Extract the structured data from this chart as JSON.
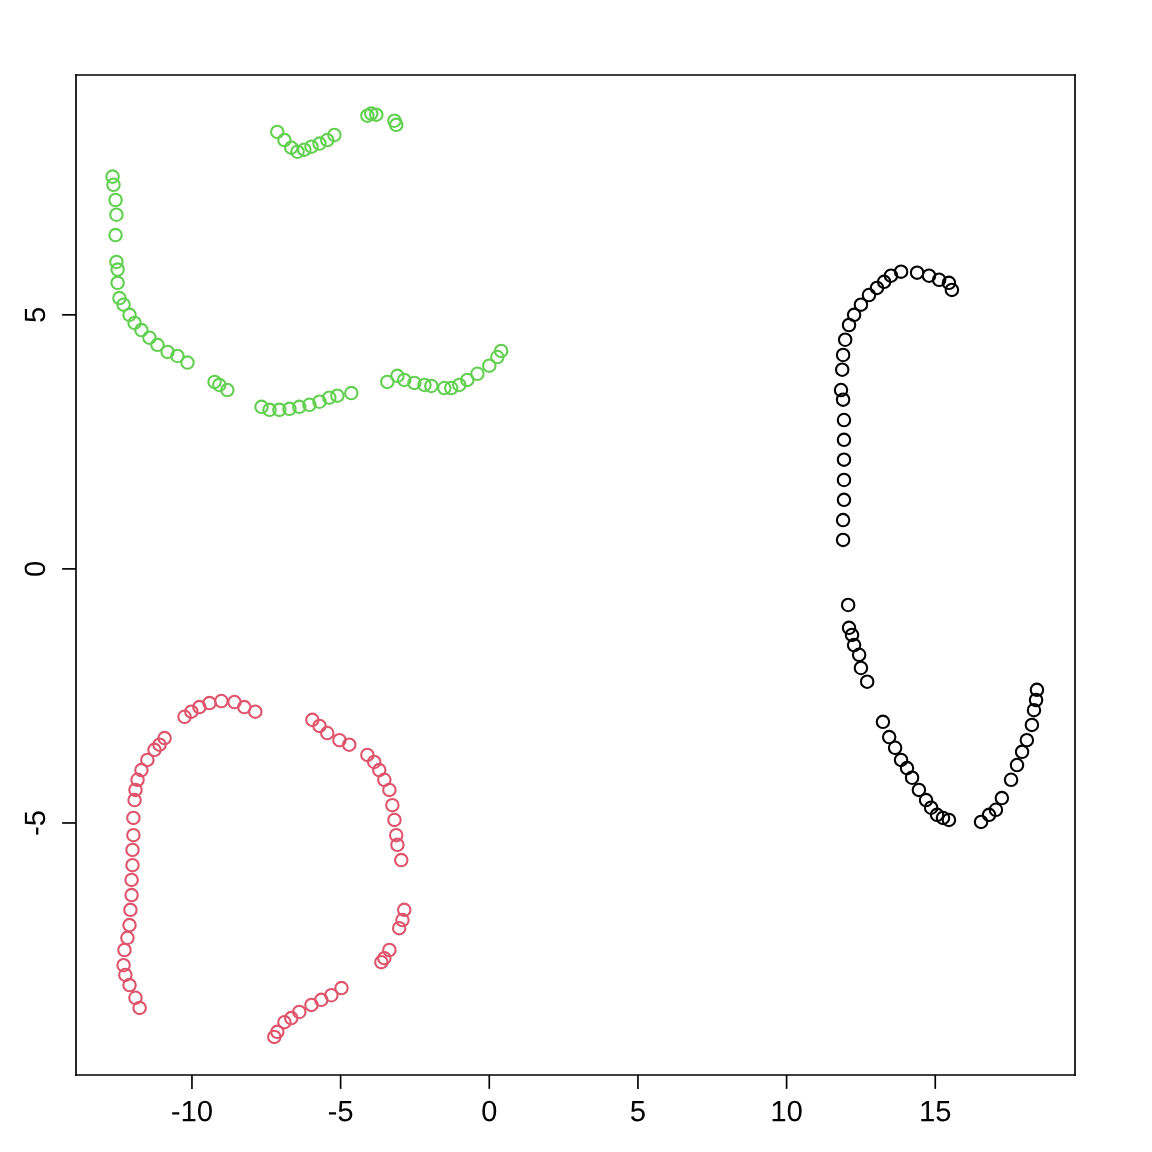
{
  "chart_data": {
    "type": "scatter",
    "marker": "circle",
    "grid": false,
    "xlim": [
      -13.9,
      19.7
    ],
    "ylim": [
      -9.96,
      9.72
    ],
    "xticks": [
      {
        "value": -10,
        "label": "-10"
      },
      {
        "value": -5,
        "label": "-5"
      },
      0,
      5,
      10,
      15
    ],
    "yticks": [
      {
        "value": -5,
        "label": "-5"
      },
      0,
      5
    ],
    "series": [
      {
        "color": "#000000",
        "x": [
          11.9,
          11.9,
          11.93,
          11.93,
          11.93,
          11.93,
          11.93,
          11.9,
          11.83,
          11.87,
          11.9,
          11.97,
          12.1,
          12.27,
          12.5,
          12.77,
          13.04,
          13.28,
          13.51,
          13.85,
          14.39,
          14.79,
          15.13,
          15.46,
          15.56,
          12.07,
          12.1,
          12.2,
          12.27,
          12.44,
          12.5,
          12.71,
          13.24,
          13.45,
          13.65,
          13.85,
          14.05,
          14.22,
          14.45,
          14.69,
          14.86,
          15.06,
          15.26,
          15.46,
          16.54,
          16.81,
          17.04,
          17.24,
          17.55,
          17.75,
          17.92,
          18.08,
          18.25,
          18.32,
          18.39,
          18.42
        ],
        "values": [
          0.57,
          0.96,
          1.36,
          1.75,
          2.15,
          2.54,
          2.93,
          3.33,
          3.52,
          3.92,
          4.21,
          4.51,
          4.8,
          5.0,
          5.2,
          5.39,
          5.53,
          5.65,
          5.77,
          5.85,
          5.83,
          5.77,
          5.69,
          5.63,
          5.49,
          -0.71,
          -1.16,
          -1.3,
          -1.5,
          -1.69,
          -1.95,
          -2.22,
          -3.01,
          -3.31,
          -3.52,
          -3.76,
          -3.92,
          -4.11,
          -4.35,
          -4.55,
          -4.7,
          -4.84,
          -4.9,
          -4.94,
          -4.98,
          -4.84,
          -4.74,
          -4.51,
          -4.15,
          -3.86,
          -3.6,
          -3.37,
          -3.07,
          -2.78,
          -2.58,
          -2.38
        ]
      },
      {
        "color": "#df536b",
        "x": [
          -11.76,
          -11.9,
          -12.1,
          -12.24,
          -12.3,
          -12.27,
          -12.17,
          -12.1,
          -12.07,
          -12.03,
          -12.03,
          -12.0,
          -12.0,
          -11.97,
          -11.97,
          -11.93,
          -11.9,
          -11.83,
          -11.7,
          -11.5,
          -11.26,
          -11.09,
          -10.92,
          -10.25,
          -10.02,
          -9.75,
          -9.41,
          -9.01,
          -8.57,
          -8.24,
          -7.87,
          -5.95,
          -5.71,
          -5.45,
          -5.04,
          -4.71,
          -4.1,
          -3.87,
          -3.7,
          -3.53,
          -3.36,
          -3.26,
          -3.19,
          -3.13,
          -3.09,
          -2.96,
          -2.86,
          -2.92,
          -3.03,
          -3.36,
          -3.53,
          -3.63,
          -4.97,
          -5.31,
          -5.65,
          -5.98,
          -6.39,
          -6.66,
          -6.89,
          -7.13,
          -7.23
        ],
        "values": [
          -8.64,
          -8.44,
          -8.19,
          -7.99,
          -7.8,
          -7.5,
          -7.26,
          -7.01,
          -6.71,
          -6.42,
          -6.12,
          -5.83,
          -5.53,
          -5.24,
          -4.9,
          -4.55,
          -4.35,
          -4.15,
          -3.96,
          -3.76,
          -3.56,
          -3.46,
          -3.33,
          -2.91,
          -2.81,
          -2.72,
          -2.64,
          -2.6,
          -2.62,
          -2.72,
          -2.81,
          -2.97,
          -3.09,
          -3.23,
          -3.37,
          -3.46,
          -3.66,
          -3.8,
          -3.96,
          -4.15,
          -4.35,
          -4.65,
          -4.94,
          -5.24,
          -5.43,
          -5.73,
          -6.71,
          -6.91,
          -7.07,
          -7.5,
          -7.66,
          -7.74,
          -8.25,
          -8.39,
          -8.48,
          -8.58,
          -8.72,
          -8.84,
          -8.92,
          -9.11,
          -9.21
        ]
      },
      {
        "color": "#61d04f",
        "x": [
          -12.67,
          -12.64,
          -12.57,
          -12.54,
          -12.57,
          -12.54,
          -12.5,
          -12.5,
          -12.44,
          -12.3,
          -12.1,
          -11.93,
          -11.7,
          -11.43,
          -11.16,
          -10.82,
          -10.49,
          -10.15,
          -9.24,
          -9.08,
          -8.81,
          -7.66,
          -7.39,
          -7.06,
          -6.72,
          -6.39,
          -6.05,
          -5.71,
          -5.38,
          -5.11,
          -4.64,
          -3.43,
          -3.09,
          -2.86,
          -2.52,
          -2.18,
          -1.95,
          -1.51,
          -1.28,
          -1.01,
          -0.74,
          -0.4,
          0.0,
          0.27,
          0.4,
          -7.13,
          -6.89,
          -6.66,
          -6.45,
          -6.22,
          -5.98,
          -5.71,
          -5.45,
          -5.21,
          -4.1,
          -3.97,
          -3.8,
          -3.19,
          -3.13
        ],
        "values": [
          7.72,
          7.56,
          7.26,
          6.97,
          6.57,
          6.04,
          5.89,
          5.63,
          5.33,
          5.2,
          5.0,
          4.84,
          4.7,
          4.55,
          4.41,
          4.27,
          4.19,
          4.06,
          3.68,
          3.62,
          3.52,
          3.19,
          3.13,
          3.13,
          3.15,
          3.19,
          3.23,
          3.29,
          3.37,
          3.41,
          3.46,
          3.68,
          3.8,
          3.72,
          3.66,
          3.62,
          3.6,
          3.56,
          3.56,
          3.62,
          3.72,
          3.84,
          4.0,
          4.17,
          4.29,
          8.6,
          8.44,
          8.29,
          8.21,
          8.25,
          8.31,
          8.37,
          8.44,
          8.54,
          8.92,
          8.96,
          8.94,
          8.82,
          8.74
        ]
      }
    ]
  }
}
